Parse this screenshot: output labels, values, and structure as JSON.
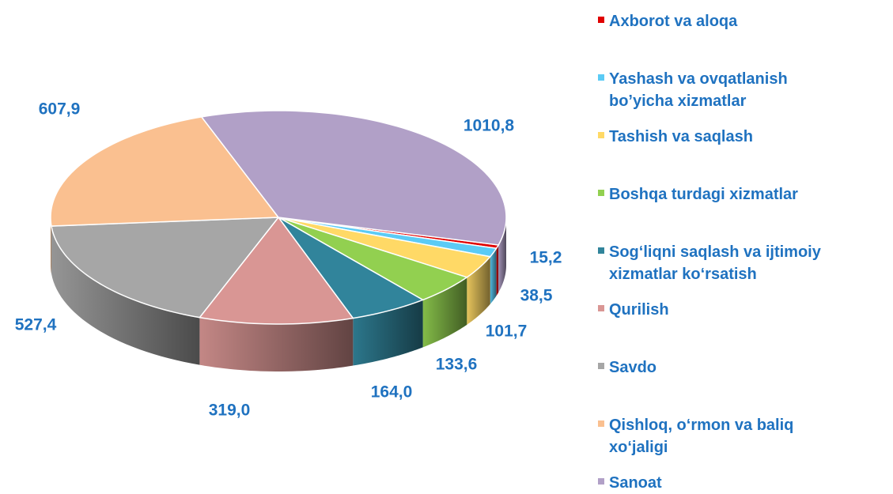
{
  "chart_data": {
    "type": "pie",
    "categories": [
      "Axborot va aloqa",
      "Yashash va ovqatlanish\nbo’yicha xizmatlar",
      "Tashish va saqlash",
      "Boshqa turdagi xizmatlar",
      "Sog‘liqni saqlash va ijtimoiy\nxizmatlar ko‘rsatish",
      "Qurilish",
      "Savdo",
      "Qishloq, o‘rmon va baliq\nxo‘jaligi",
      "Sanoat"
    ],
    "values": [
      15.2,
      38.5,
      101.7,
      133.6,
      164.0,
      319.0,
      527.4,
      607.9,
      1010.8
    ],
    "value_labels": [
      "15,2",
      "38,5",
      "101,7",
      "133,6",
      "164,0",
      "319,0",
      "527,4",
      "607,9",
      "1010,8"
    ],
    "colors": [
      "#e00000",
      "#5bcbf5",
      "#ffd966",
      "#92d050",
      "#31849b",
      "#d99694",
      "#a6a6a6",
      "#fac090",
      "#b1a0c7"
    ],
    "legend": "right"
  }
}
